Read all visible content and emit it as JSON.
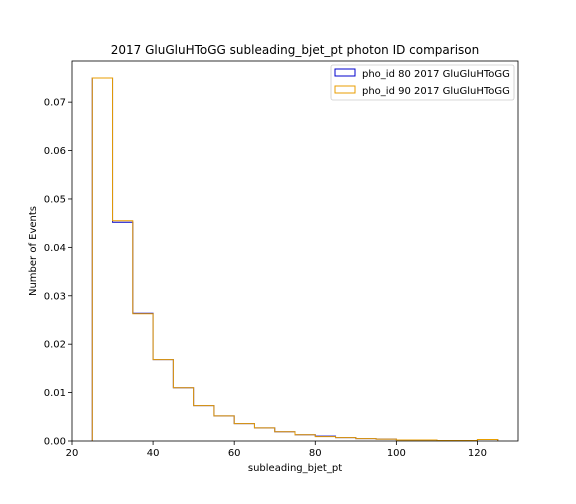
{
  "chart_data": {
    "type": "histogram-step",
    "title": "2017 GluGluHToGG subleading_bjet_pt photon ID comparison",
    "xlabel": "subleading_bjet_pt",
    "ylabel": "Number of Events",
    "xlim": [
      20,
      130
    ],
    "ylim": [
      0,
      0.0785
    ],
    "xticks": [
      20,
      40,
      60,
      80,
      100,
      120
    ],
    "yticks": [
      0.0,
      0.01,
      0.02,
      0.03,
      0.04,
      0.05,
      0.06,
      0.07
    ],
    "ytick_format": "2dp",
    "grid": false,
    "legend_position": "top-right",
    "bin_edges": [
      25,
      30,
      35,
      40,
      45,
      50,
      55,
      60,
      65,
      70,
      75,
      80,
      85,
      90,
      95,
      100,
      105,
      110,
      115,
      120,
      125
    ],
    "series": [
      {
        "name": "pho_id 80 2017 GluGluHToGG",
        "color": "#0000cc",
        "values": [
          0.075,
          0.0452,
          0.0264,
          0.0168,
          0.011,
          0.0073,
          0.0052,
          0.0036,
          0.0027,
          0.0019,
          0.0013,
          0.001,
          0.0007,
          0.0005,
          0.0004,
          0.0002,
          0.0002,
          0.0001,
          0.0001,
          0.0003
        ]
      },
      {
        "name": "pho_id 90 2017 GluGluHToGG",
        "color": "#e89e00",
        "values": [
          0.075,
          0.0455,
          0.0263,
          0.0168,
          0.011,
          0.0073,
          0.0052,
          0.0036,
          0.0027,
          0.0019,
          0.0013,
          0.0009,
          0.0007,
          0.0005,
          0.0004,
          0.0002,
          0.0002,
          0.0001,
          0.0001,
          0.0003
        ]
      }
    ]
  }
}
